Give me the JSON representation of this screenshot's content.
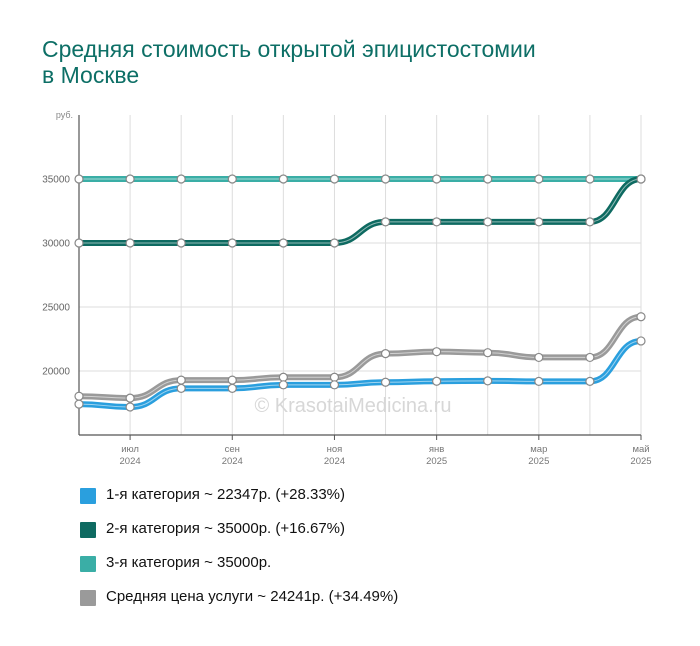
{
  "chart_data": {
    "type": "line",
    "title_lines": [
      "Средняя стоимость открытой эпицистостомии",
      "в Москве"
    ],
    "ylabel": "руб.",
    "ylim": [
      15000,
      40000
    ],
    "yticks": [
      20000,
      25000,
      30000,
      35000
    ],
    "grid": true,
    "x": [
      "2024-06",
      "2024-07",
      "2024-08",
      "2024-09",
      "2024-10",
      "2024-11",
      "2024-12",
      "2025-01",
      "2025-02",
      "2025-03",
      "2025-04",
      "2025-05"
    ],
    "xticks": [
      {
        "index": 1,
        "line1": "июл",
        "line2": "2024"
      },
      {
        "index": 3,
        "line1": "сен",
        "line2": "2024"
      },
      {
        "index": 5,
        "line1": "ноя",
        "line2": "2024"
      },
      {
        "index": 7,
        "line1": "янв",
        "line2": "2025"
      },
      {
        "index": 9,
        "line1": "мар",
        "line2": "2025"
      },
      {
        "index": 11,
        "line1": "май",
        "line2": "2025"
      }
    ],
    "watermark": "© KrasotaiMedicina.ru",
    "series": [
      {
        "key": "s3",
        "color": "#3aaea6",
        "values": [
          35000,
          35000,
          35000,
          35000,
          35000,
          35000,
          35000,
          35000,
          35000,
          35000,
          35000,
          35000
        ]
      },
      {
        "key": "s2",
        "color": "#0e6a61",
        "values": [
          30000,
          30000,
          30000,
          30000,
          30000,
          30000,
          31650,
          31650,
          31650,
          31650,
          31650,
          35000
        ]
      },
      {
        "key": "savg",
        "color": "#9a9a9a",
        "values": [
          18030,
          17880,
          19290,
          19290,
          19510,
          19510,
          21360,
          21510,
          21430,
          21060,
          21060,
          24241
        ]
      },
      {
        "key": "s1",
        "color": "#2a9fde",
        "values": [
          17410,
          17190,
          18640,
          18640,
          18920,
          18920,
          19120,
          19200,
          19230,
          19190,
          19190,
          22347
        ]
      }
    ]
  },
  "legend": [
    {
      "label": "1-я категория ~ 22347р. (+28.33%)",
      "color": "#2a9fde"
    },
    {
      "label": "2-я категория ~ 35000р. (+16.67%)",
      "color": "#0e6a61"
    },
    {
      "label": "3-я категория ~ 35000р.",
      "color": "#3aaea6"
    },
    {
      "label": "Средняя цена услуги ~ 24241р. (+34.49%)",
      "color": "#9a9a9a"
    }
  ]
}
